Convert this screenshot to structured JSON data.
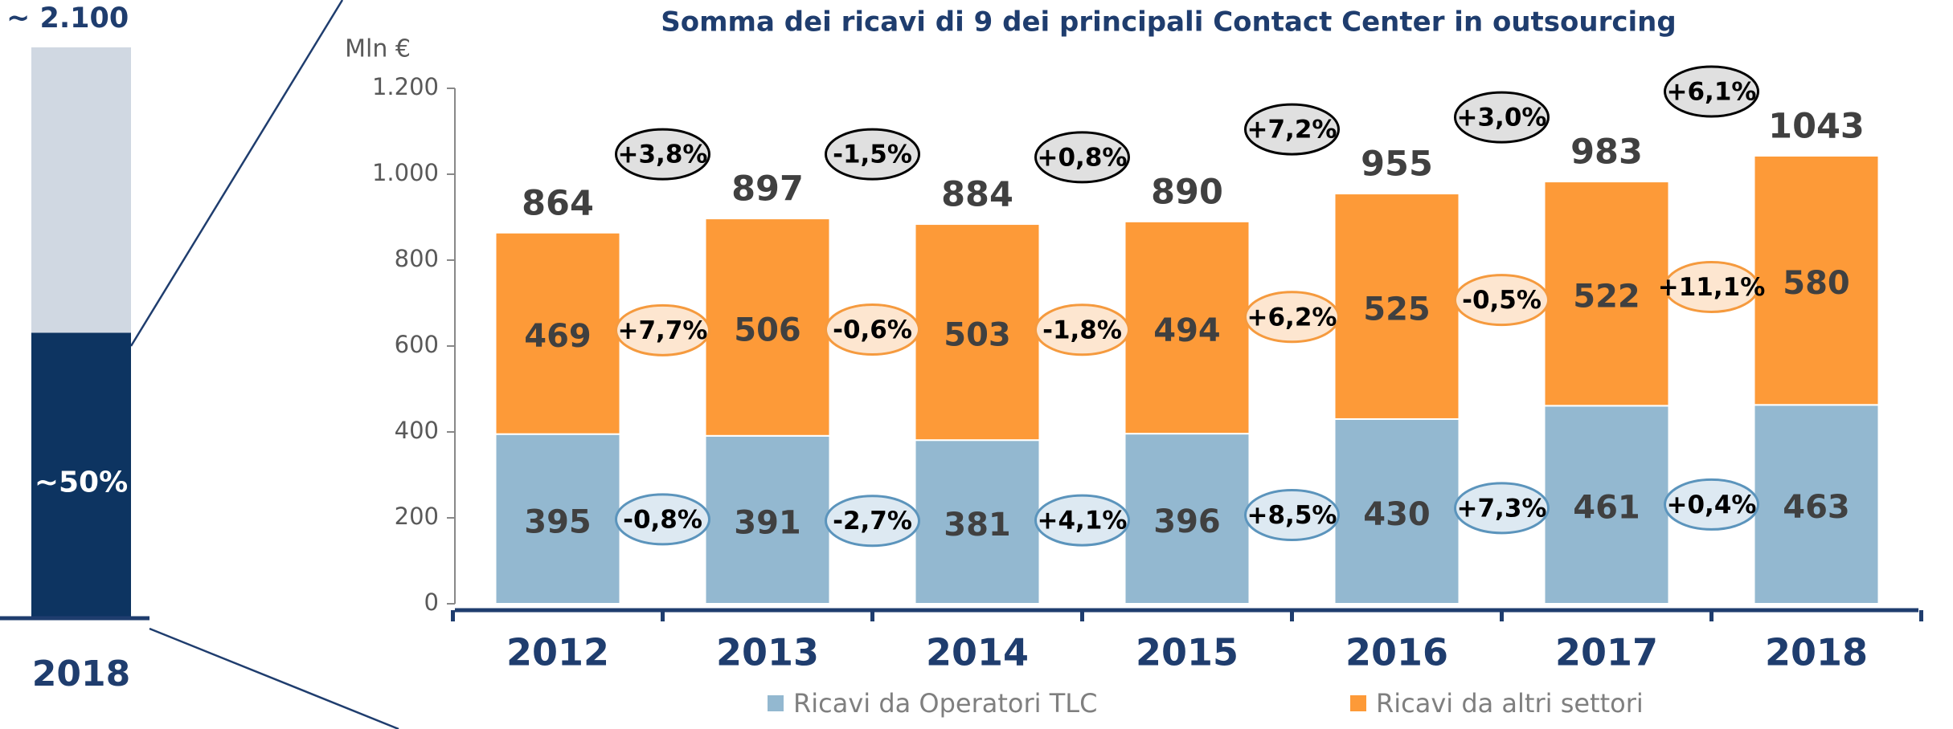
{
  "market": {
    "total_label": "~ 2.100",
    "share": 50,
    "share_label": "~50%",
    "year": "2018"
  },
  "chart_data": {
    "type": "bar",
    "stacked": true,
    "title": "Somma dei ricavi di 9 dei principali Contact Center in outsourcing",
    "y_axis_label": "Mln €",
    "categories": [
      "2012",
      "2013",
      "2014",
      "2015",
      "2016",
      "2017",
      "2018"
    ],
    "series": [
      {
        "name": "Ricavi da Operatori TLC",
        "color": "#93b8d0",
        "values": [
          395,
          391,
          381,
          396,
          430,
          461,
          463
        ],
        "growth_labels": [
          "-0,8%",
          "-2,7%",
          "+4,1%",
          "+8,5%",
          "+7,3%",
          "+0,4%"
        ]
      },
      {
        "name": "Ricavi da altri settori",
        "color": "#fd9a38",
        "values": [
          469,
          506,
          503,
          494,
          525,
          522,
          580
        ],
        "growth_labels": [
          "+7,7%",
          "-0,6%",
          "-1,8%",
          "+6,2%",
          "-0,5%",
          "+11,1%"
        ]
      }
    ],
    "totals": [
      864,
      897,
      884,
      890,
      955,
      983,
      1043
    ],
    "total_growth_labels": [
      "+3,8%",
      "-1,5%",
      "+0,8%",
      "+7,2%",
      "+3,0%",
      "+6,1%"
    ],
    "ylim": [
      0,
      1200
    ],
    "yticks": [
      0,
      200,
      400,
      600,
      800,
      {
        "value": 1000,
        "label": "1.000"
      },
      {
        "value": 1200,
        "label": "1.200"
      }
    ],
    "legend": "bottom"
  }
}
